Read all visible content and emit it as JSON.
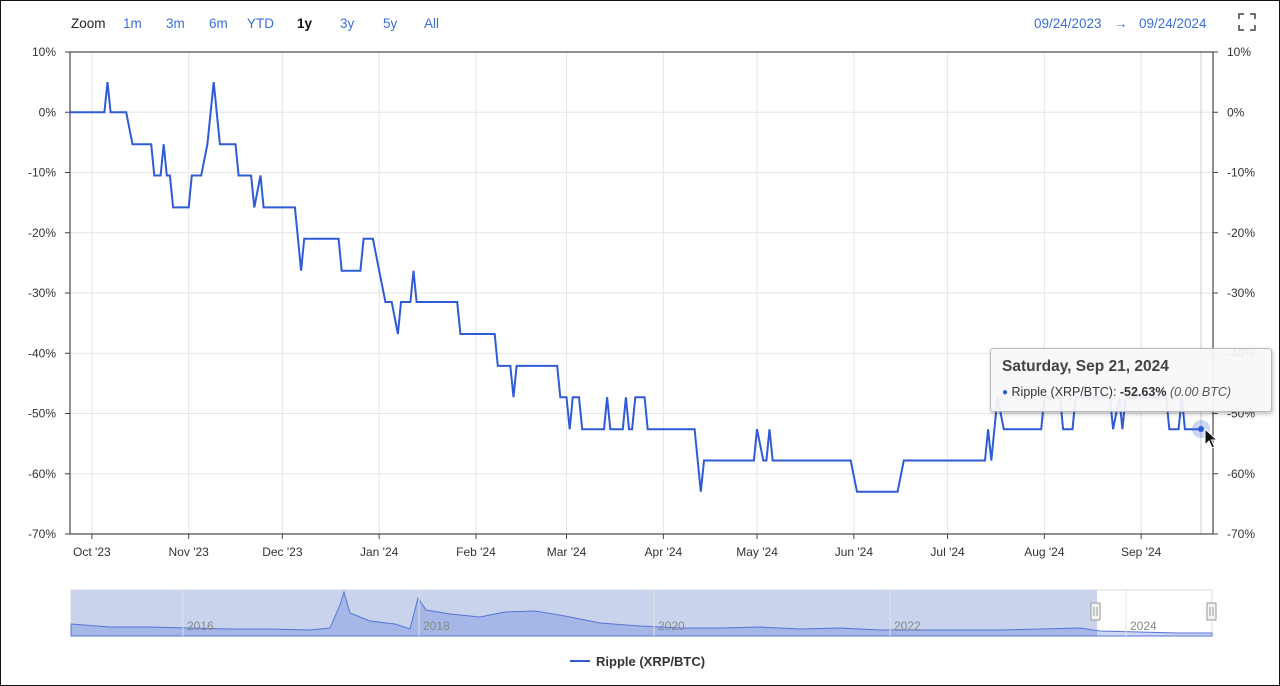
{
  "toolbar": {
    "zoom_label": "Zoom",
    "zoom_buttons": [
      "1m",
      "3m",
      "6m",
      "YTD",
      "1y",
      "3y",
      "5y",
      "All"
    ],
    "active_zoom": "1y",
    "range_start": "09/24/2023",
    "range_arrow": "→",
    "range_end": "09/24/2024",
    "fullscreen_icon": "fullscreen-icon"
  },
  "colors": {
    "series": "#2f5bd6",
    "navigator_fill": "#c9d3ec",
    "accent": "#3b6fd8"
  },
  "tooltip": {
    "date": "Saturday, Sep 21, 2024",
    "series_label": "Ripple (XRP/BTC): ",
    "value": "-52.63%",
    "btc": "(0.00 BTC)"
  },
  "legend": {
    "label": "Ripple (XRP/BTC)"
  },
  "navigator": {
    "year_labels": [
      "2016",
      "2018",
      "2020",
      "2022",
      "2024"
    ]
  },
  "chart_data": {
    "type": "line",
    "title": "",
    "xlabel": "",
    "ylabel": "",
    "ylim": [
      -70,
      10
    ],
    "y_ticks": [
      "10%",
      "0%",
      "-10%",
      "-20%",
      "-30%",
      "-40%",
      "-50%",
      "-60%",
      "-70%"
    ],
    "x_ticks": [
      "Oct '23",
      "Nov '23",
      "Dec '23",
      "Jan '24",
      "Feb '24",
      "Mar '24",
      "Apr '24",
      "May '24",
      "Jun '24",
      "Jul '24",
      "Aug '24",
      "Sep '24"
    ],
    "x_range": [
      "2023-09-24",
      "2024-09-24"
    ],
    "grid": true,
    "legend_position": "bottom-center",
    "series": [
      {
        "name": "Ripple (XRP/BTC)",
        "points": [
          [
            "2023-09-24",
            0
          ],
          [
            "2023-10-05",
            0
          ],
          [
            "2023-10-06",
            5
          ],
          [
            "2023-10-07",
            0
          ],
          [
            "2023-10-12",
            0
          ],
          [
            "2023-10-14",
            -5.3
          ],
          [
            "2023-10-20",
            -5.3
          ],
          [
            "2023-10-21",
            -10.5
          ],
          [
            "2023-10-23",
            -10.5
          ],
          [
            "2023-10-24",
            -5.3
          ],
          [
            "2023-10-25",
            -10.5
          ],
          [
            "2023-10-26",
            -10.5
          ],
          [
            "2023-10-27",
            -15.8
          ],
          [
            "2023-11-01",
            -15.8
          ],
          [
            "2023-11-02",
            -10.5
          ],
          [
            "2023-11-05",
            -10.5
          ],
          [
            "2023-11-07",
            -5.3
          ],
          [
            "2023-11-09",
            5
          ],
          [
            "2023-11-11",
            -5.3
          ],
          [
            "2023-11-16",
            -5.3
          ],
          [
            "2023-11-17",
            -10.5
          ],
          [
            "2023-11-21",
            -10.5
          ],
          [
            "2023-11-22",
            -15.8
          ],
          [
            "2023-11-24",
            -10.5
          ],
          [
            "2023-11-25",
            -15.8
          ],
          [
            "2023-12-05",
            -15.8
          ],
          [
            "2023-12-06",
            -21
          ],
          [
            "2023-12-07",
            -26.3
          ],
          [
            "2023-12-08",
            -21
          ],
          [
            "2023-12-19",
            -21
          ],
          [
            "2023-12-20",
            -26.3
          ],
          [
            "2023-12-26",
            -26.3
          ],
          [
            "2023-12-27",
            -21
          ],
          [
            "2023-12-30",
            -21
          ],
          [
            "2024-01-01",
            -26.3
          ],
          [
            "2024-01-03",
            -31.5
          ],
          [
            "2024-01-05",
            -31.5
          ],
          [
            "2024-01-07",
            -36.8
          ],
          [
            "2024-01-08",
            -31.5
          ],
          [
            "2024-01-11",
            -31.5
          ],
          [
            "2024-01-12",
            -26.3
          ],
          [
            "2024-01-13",
            -31.5
          ],
          [
            "2024-01-26",
            -31.5
          ],
          [
            "2024-01-27",
            -36.8
          ],
          [
            "2024-02-07",
            -36.8
          ],
          [
            "2024-02-08",
            -42.1
          ],
          [
            "2024-02-12",
            -42.1
          ],
          [
            "2024-02-13",
            -47.3
          ],
          [
            "2024-02-14",
            -42.1
          ],
          [
            "2024-02-27",
            -42.1
          ],
          [
            "2024-02-28",
            -47.3
          ],
          [
            "2024-03-01",
            -47.3
          ],
          [
            "2024-03-02",
            -52.6
          ],
          [
            "2024-03-03",
            -47.3
          ],
          [
            "2024-03-05",
            -47.3
          ],
          [
            "2024-03-06",
            -52.6
          ],
          [
            "2024-03-13",
            -52.6
          ],
          [
            "2024-03-14",
            -47.3
          ],
          [
            "2024-03-15",
            -52.6
          ],
          [
            "2024-03-19",
            -52.6
          ],
          [
            "2024-03-20",
            -47.3
          ],
          [
            "2024-03-21",
            -52.6
          ],
          [
            "2024-03-22",
            -52.6
          ],
          [
            "2024-03-23",
            -47.3
          ],
          [
            "2024-03-26",
            -47.3
          ],
          [
            "2024-03-27",
            -52.6
          ],
          [
            "2024-04-11",
            -52.6
          ],
          [
            "2024-04-13",
            -63
          ],
          [
            "2024-04-14",
            -57.8
          ],
          [
            "2024-04-30",
            -57.8
          ],
          [
            "2024-05-01",
            -52.6
          ],
          [
            "2024-05-03",
            -57.8
          ],
          [
            "2024-05-04",
            -57.8
          ],
          [
            "2024-05-05",
            -52.6
          ],
          [
            "2024-05-06",
            -57.8
          ],
          [
            "2024-05-31",
            -57.8
          ],
          [
            "2024-06-02",
            -63
          ],
          [
            "2024-06-15",
            -63
          ],
          [
            "2024-06-17",
            -57.8
          ],
          [
            "2024-07-13",
            -57.8
          ],
          [
            "2024-07-14",
            -52.6
          ],
          [
            "2024-07-15",
            -57.8
          ],
          [
            "2024-07-16",
            -52.6
          ],
          [
            "2024-07-17",
            -47.3
          ],
          [
            "2024-07-19",
            -52.6
          ],
          [
            "2024-07-31",
            -52.6
          ],
          [
            "2024-08-01",
            -47.3
          ],
          [
            "2024-08-06",
            -47.3
          ],
          [
            "2024-08-07",
            -52.6
          ],
          [
            "2024-08-10",
            -52.6
          ],
          [
            "2024-08-11",
            -47.3
          ],
          [
            "2024-08-22",
            -47.3
          ],
          [
            "2024-08-23",
            -52.6
          ],
          [
            "2024-08-25",
            -47.3
          ],
          [
            "2024-08-26",
            -52.6
          ],
          [
            "2024-08-27",
            -47.3
          ],
          [
            "2024-09-09",
            -47.3
          ],
          [
            "2024-09-10",
            -52.6
          ],
          [
            "2024-09-13",
            -52.6
          ],
          [
            "2024-09-14",
            -47.3
          ],
          [
            "2024-09-15",
            -52.6
          ],
          [
            "2024-09-21",
            -52.63
          ]
        ]
      }
    ]
  }
}
